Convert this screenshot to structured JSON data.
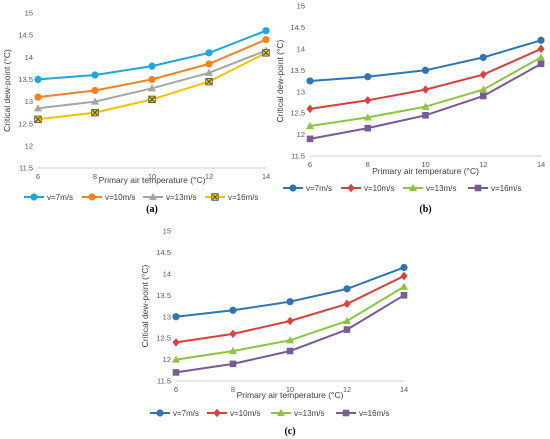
{
  "chart_data": [
    {
      "type": "line",
      "panel_label": "(a)",
      "x": [
        6,
        8,
        10,
        12,
        14
      ],
      "xlabel": "Primary air temperature (°C)",
      "ylabel": "Critical dew-point (°C)",
      "ylim": [
        11.5,
        15
      ],
      "yticks": [
        "11.5",
        "12",
        "12.5",
        "13",
        "13.5",
        "14",
        "14.5",
        "15"
      ],
      "xticks": [
        "6",
        "8",
        "10",
        "12",
        "14"
      ],
      "grid": false,
      "legend": "bottom",
      "series": [
        {
          "name": "v=7m/s",
          "color": "#1ea7dd",
          "marker": "circle",
          "values": [
            13.5,
            13.6,
            13.8,
            14.1,
            14.6
          ]
        },
        {
          "name": "v=10m/s",
          "color": "#f58220",
          "marker": "circle",
          "values": [
            13.1,
            13.25,
            13.5,
            13.85,
            14.4
          ]
        },
        {
          "name": "v=13m/s",
          "color": "#a5a5a5",
          "marker": "triangle",
          "values": [
            12.85,
            13.0,
            13.3,
            13.65,
            14.15
          ]
        },
        {
          "name": "v=16m/s",
          "color": "#f2c200",
          "marker": "xbox",
          "values": [
            12.6,
            12.75,
            13.05,
            13.45,
            14.1
          ]
        }
      ]
    },
    {
      "type": "line",
      "panel_label": "(b)",
      "x": [
        6,
        8,
        10,
        12,
        14
      ],
      "xlabel": "Primary air temperature (°C)",
      "ylabel": "Critical dew-point (°C)",
      "ylim": [
        11.5,
        15
      ],
      "yticks": [
        "11.5",
        "12",
        "12.5",
        "13",
        "13.5",
        "14",
        "14.5",
        "15"
      ],
      "xticks": [
        "6",
        "8",
        "10",
        "12",
        "14"
      ],
      "grid": false,
      "legend": "bottom",
      "series": [
        {
          "name": "v=7m/s",
          "color": "#2e75b6",
          "marker": "circle",
          "values": [
            13.25,
            13.35,
            13.5,
            13.8,
            14.2
          ]
        },
        {
          "name": "v=10m/s",
          "color": "#d9413b",
          "marker": "diamond",
          "values": [
            12.6,
            12.8,
            13.05,
            13.4,
            14.0
          ]
        },
        {
          "name": "v=13m/s",
          "color": "#8cc63f",
          "marker": "triangle",
          "values": [
            12.2,
            12.4,
            12.65,
            13.05,
            13.8
          ]
        },
        {
          "name": "v=16m/s",
          "color": "#7a5a96",
          "marker": "square",
          "values": [
            11.9,
            12.15,
            12.45,
            12.9,
            13.65
          ]
        }
      ]
    },
    {
      "type": "line",
      "panel_label": "(c)",
      "x": [
        6,
        8,
        10,
        12,
        14
      ],
      "xlabel": "Primary air temperature (°C)",
      "ylabel": "Critical dew-point (°C)",
      "ylim": [
        11.5,
        15
      ],
      "yticks": [
        "11.5",
        "12",
        "12.5",
        "13",
        "13.5",
        "14",
        "14.5",
        "15"
      ],
      "xticks": [
        "6",
        "8",
        "10",
        "12",
        "14"
      ],
      "grid": false,
      "legend": "bottom",
      "series": [
        {
          "name": "v=7m/s",
          "color": "#2e75b6",
          "marker": "circle",
          "values": [
            13.0,
            13.15,
            13.35,
            13.65,
            14.15
          ]
        },
        {
          "name": "v=10m/s",
          "color": "#d9413b",
          "marker": "diamond",
          "values": [
            12.4,
            12.6,
            12.9,
            13.3,
            13.95
          ]
        },
        {
          "name": "v=13m/s",
          "color": "#8cc63f",
          "marker": "triangle",
          "values": [
            12.0,
            12.2,
            12.45,
            12.9,
            13.7
          ]
        },
        {
          "name": "v=16m/s",
          "color": "#7a5a96",
          "marker": "square",
          "values": [
            11.7,
            11.9,
            12.2,
            12.7,
            13.5
          ]
        }
      ]
    }
  ]
}
